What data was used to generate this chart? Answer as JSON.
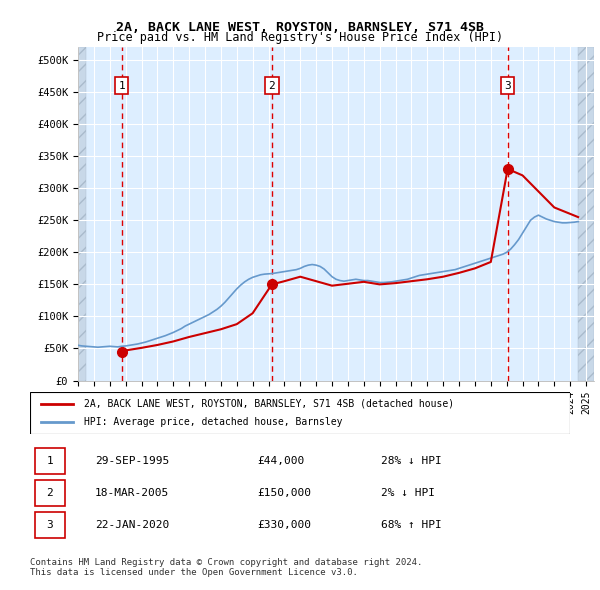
{
  "title": "2A, BACK LANE WEST, ROYSTON, BARNSLEY, S71 4SB",
  "subtitle": "Price paid vs. HM Land Registry's House Price Index (HPI)",
  "ylabel_ticks": [
    "£0",
    "£50K",
    "£100K",
    "£150K",
    "£200K",
    "£250K",
    "£300K",
    "£350K",
    "£400K",
    "£450K",
    "£500K"
  ],
  "ytick_values": [
    0,
    50000,
    100000,
    150000,
    200000,
    250000,
    300000,
    350000,
    400000,
    450000,
    500000
  ],
  "ylim": [
    0,
    520000
  ],
  "xlim_start": 1993.0,
  "xlim_end": 2025.5,
  "sale_dates": [
    1995.75,
    2005.21,
    2020.06
  ],
  "sale_prices": [
    44000,
    150000,
    330000
  ],
  "sale_labels": [
    "1",
    "2",
    "3"
  ],
  "hpi_color": "#6699cc",
  "price_color": "#cc0000",
  "sale_dot_color": "#cc0000",
  "background_plot": "#ddeeff",
  "background_hatch": "#ccddee",
  "hatch_pattern": "//",
  "grid_color": "#ffffff",
  "vline_color": "#dd0000",
  "legend_label_red": "2A, BACK LANE WEST, ROYSTON, BARNSLEY, S71 4SB (detached house)",
  "legend_label_blue": "HPI: Average price, detached house, Barnsley",
  "table_data": [
    [
      "1",
      "29-SEP-1995",
      "£44,000",
      "28% ↓ HPI"
    ],
    [
      "2",
      "18-MAR-2005",
      "£150,000",
      "2% ↓ HPI"
    ],
    [
      "3",
      "22-JAN-2020",
      "£330,000",
      "68% ↑ HPI"
    ]
  ],
  "footer": "Contains HM Land Registry data © Crown copyright and database right 2024.\nThis data is licensed under the Open Government Licence v3.0.",
  "hpi_data_x": [
    1993.0,
    1993.25,
    1993.5,
    1993.75,
    1994.0,
    1994.25,
    1994.5,
    1994.75,
    1995.0,
    1995.25,
    1995.5,
    1995.75,
    1996.0,
    1996.25,
    1996.5,
    1996.75,
    1997.0,
    1997.25,
    1997.5,
    1997.75,
    1998.0,
    1998.25,
    1998.5,
    1998.75,
    1999.0,
    1999.25,
    1999.5,
    1999.75,
    2000.0,
    2000.25,
    2000.5,
    2000.75,
    2001.0,
    2001.25,
    2001.5,
    2001.75,
    2002.0,
    2002.25,
    2002.5,
    2002.75,
    2003.0,
    2003.25,
    2003.5,
    2003.75,
    2004.0,
    2004.25,
    2004.5,
    2004.75,
    2005.0,
    2005.25,
    2005.5,
    2005.75,
    2006.0,
    2006.25,
    2006.5,
    2006.75,
    2007.0,
    2007.25,
    2007.5,
    2007.75,
    2008.0,
    2008.25,
    2008.5,
    2008.75,
    2009.0,
    2009.25,
    2009.5,
    2009.75,
    2010.0,
    2010.25,
    2010.5,
    2010.75,
    2011.0,
    2011.25,
    2011.5,
    2011.75,
    2012.0,
    2012.25,
    2012.5,
    2012.75,
    2013.0,
    2013.25,
    2013.5,
    2013.75,
    2014.0,
    2014.25,
    2014.5,
    2014.75,
    2015.0,
    2015.25,
    2015.5,
    2015.75,
    2016.0,
    2016.25,
    2016.5,
    2016.75,
    2017.0,
    2017.25,
    2017.5,
    2017.75,
    2018.0,
    2018.25,
    2018.5,
    2018.75,
    2019.0,
    2019.25,
    2019.5,
    2019.75,
    2020.0,
    2020.25,
    2020.5,
    2020.75,
    2021.0,
    2021.25,
    2021.5,
    2021.75,
    2022.0,
    2022.25,
    2022.5,
    2022.75,
    2023.0,
    2023.25,
    2023.5,
    2023.75,
    2024.0,
    2024.25,
    2024.5
  ],
  "hpi_data_y": [
    55000,
    54000,
    53500,
    53000,
    52500,
    52000,
    52500,
    53000,
    53500,
    53000,
    52500,
    53500,
    54000,
    55000,
    56000,
    57000,
    58500,
    60000,
    62000,
    64000,
    66000,
    68000,
    70000,
    72500,
    75000,
    78000,
    81000,
    85000,
    88000,
    91000,
    94000,
    97000,
    100000,
    103000,
    107000,
    111000,
    116000,
    122000,
    129000,
    136000,
    143000,
    149000,
    154000,
    158000,
    161000,
    163000,
    165000,
    166000,
    166500,
    167000,
    168000,
    169000,
    170000,
    171000,
    172000,
    173000,
    175000,
    178000,
    180000,
    181000,
    180000,
    178000,
    174000,
    168000,
    162000,
    158000,
    156000,
    155000,
    156000,
    157000,
    158000,
    157000,
    156000,
    156000,
    155000,
    154000,
    153000,
    153000,
    153500,
    154000,
    155000,
    156000,
    157000,
    158000,
    160000,
    162000,
    164000,
    165000,
    166000,
    167000,
    168000,
    169000,
    170000,
    171000,
    172000,
    173000,
    175000,
    177000,
    179000,
    181000,
    183000,
    185000,
    187000,
    189000,
    191000,
    193000,
    195000,
    197000,
    200000,
    205000,
    212000,
    220000,
    230000,
    240000,
    250000,
    255000,
    258000,
    255000,
    252000,
    250000,
    248000,
    247000,
    246000,
    246000,
    246500,
    247000,
    248000
  ],
  "price_data_x": [
    1995.75,
    1995.76,
    1996.0,
    1997.0,
    1998.0,
    1999.0,
    2000.0,
    2001.0,
    2002.0,
    2003.0,
    2004.0,
    2005.21,
    2005.22,
    2006.0,
    2007.0,
    2008.0,
    2009.0,
    2010.0,
    2011.0,
    2012.0,
    2013.0,
    2014.0,
    2015.0,
    2016.0,
    2017.0,
    2018.0,
    2019.0,
    2020.06,
    2020.07,
    2021.0,
    2022.0,
    2023.0,
    2024.0,
    2024.5
  ],
  "price_data_y": [
    44000,
    44000,
    47000,
    51000,
    55500,
    61000,
    68000,
    74000,
    80000,
    88000,
    105000,
    150000,
    150000,
    155000,
    162000,
    155000,
    148000,
    151000,
    154000,
    150000,
    152000,
    155000,
    158000,
    162000,
    168000,
    175000,
    185000,
    330000,
    330000,
    320000,
    295000,
    270000,
    260000,
    255000
  ]
}
